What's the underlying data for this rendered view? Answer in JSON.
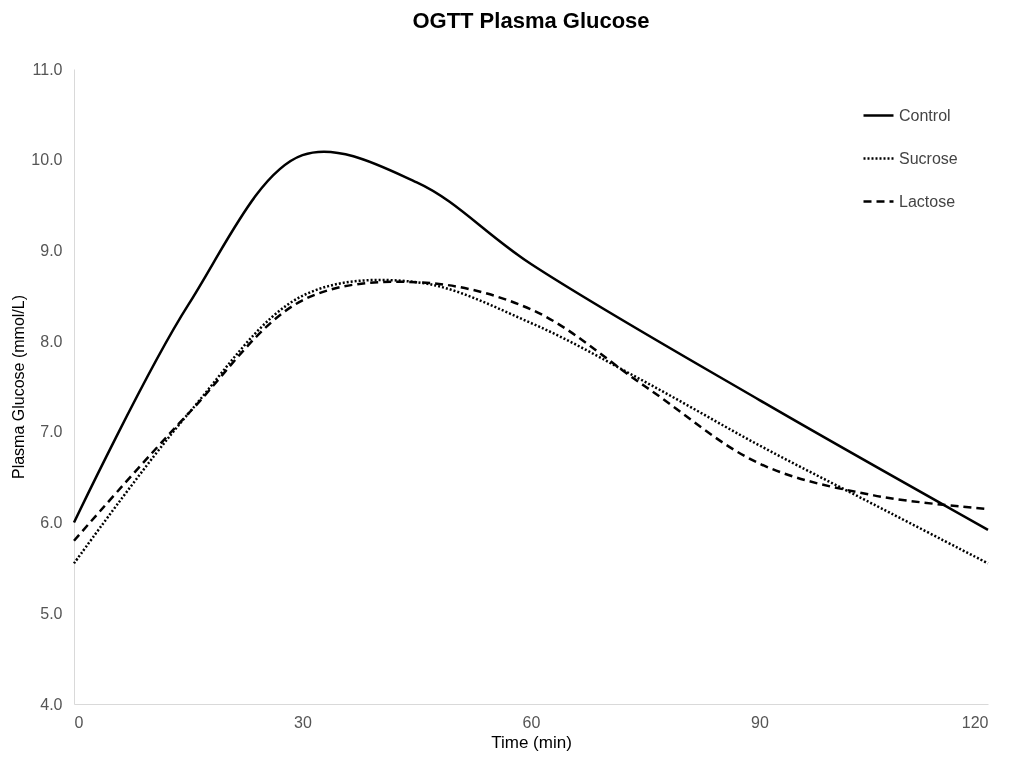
{
  "chart_data": {
    "type": "line",
    "title": "OGTT Plasma Glucose",
    "xlabel": "Time (min)",
    "ylabel": "Plasma Glucose (mmol/L)",
    "x": [
      0,
      15,
      30,
      45,
      60,
      75,
      90,
      105,
      120
    ],
    "series": [
      {
        "name": "Control",
        "color": "#000000",
        "line_style": "solid",
        "x": [
          0,
          15,
          30,
          45,
          60,
          90,
          120
        ],
        "values": [
          6.0,
          8.4,
          10.05,
          9.75,
          8.85,
          7.35,
          5.92
        ]
      },
      {
        "name": "Sucrose",
        "color": "#000000",
        "line_style": "dotted",
        "values": [
          5.55,
          7.2,
          8.5,
          8.65,
          8.2,
          7.55,
          6.85,
          6.2,
          5.55
        ]
      },
      {
        "name": "Lactose",
        "color": "#000000",
        "line_style": "dashed",
        "values": [
          5.8,
          7.2,
          8.45,
          8.65,
          8.35,
          7.5,
          6.65,
          6.3,
          6.15
        ]
      }
    ],
    "xlim": [
      0,
      120
    ],
    "xticks": [
      0,
      30,
      60,
      90,
      120
    ],
    "ylim": [
      4,
      11
    ],
    "yticks": [
      {
        "value": 4,
        "label": "4.0"
      },
      {
        "value": 5,
        "label": "5.0"
      },
      {
        "value": 6,
        "label": "6.0"
      },
      {
        "value": 7,
        "label": "7.0"
      },
      {
        "value": 8,
        "label": "8.0"
      },
      {
        "value": 9,
        "label": "9.0"
      },
      {
        "value": 10,
        "label": "10.0"
      },
      {
        "value": 11,
        "label": "11.0"
      }
    ],
    "grid": false,
    "legend": "top right",
    "marker": "none"
  }
}
